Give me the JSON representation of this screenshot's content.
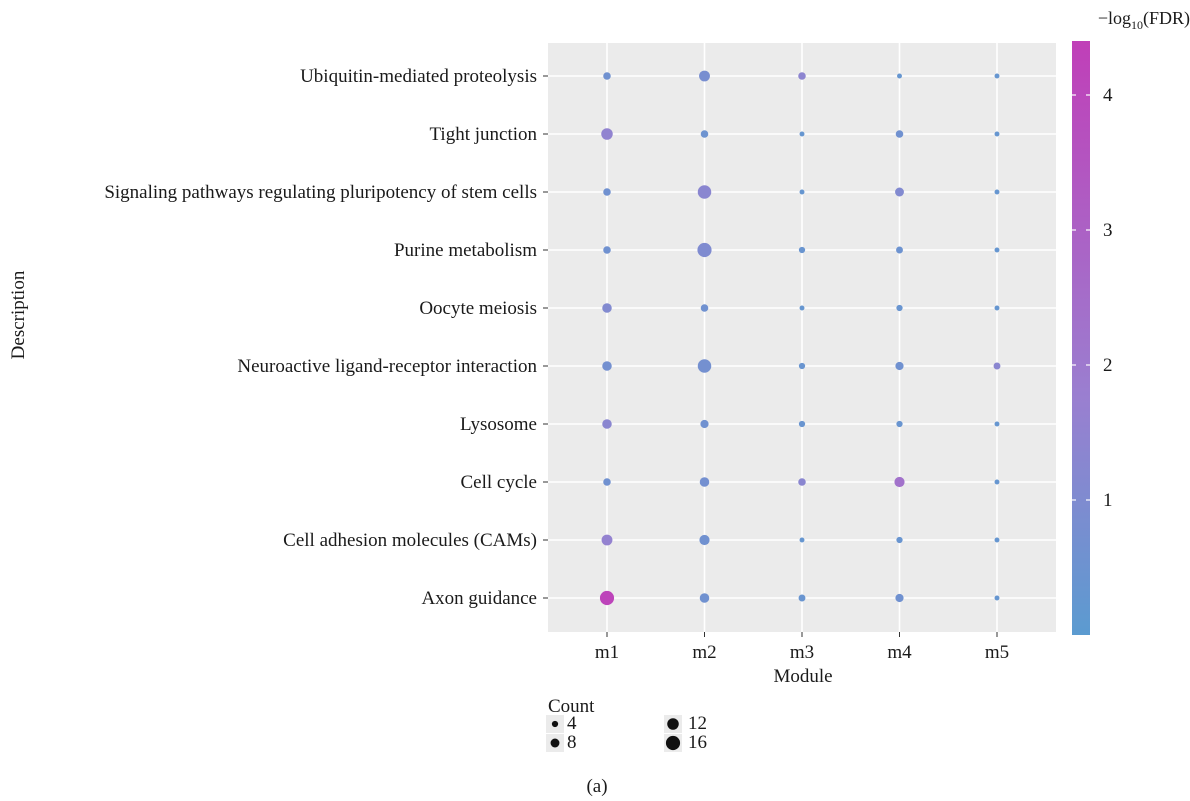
{
  "chart_data": {
    "type": "scatter",
    "subtype": "dot-plot",
    "xlabel": "Module",
    "ylabel": "Description",
    "caption": "(a)",
    "x_categories": [
      "m1",
      "m2",
      "m3",
      "m4",
      "m5"
    ],
    "y_categories": [
      "Ubiquitin-mediated proteolysis",
      "Tight junction",
      "Signaling pathways regulating pluripotency of stem cells",
      "Purine metabolism",
      "Oocyte meiosis",
      "Neuroactive ligand-receptor interaction",
      "Lysosome",
      "Cell cycle",
      "Cell adhesion molecules (CAMs)",
      "Axon guidance"
    ],
    "color_legend": {
      "title_prefix": "−log",
      "title_sub": "10",
      "title_suffix": "(FDR)",
      "ticks": [
        1,
        2,
        3,
        4
      ],
      "tick_labels": [
        "1",
        "2",
        "3",
        "4"
      ],
      "range": [
        0,
        4.4
      ],
      "low_color": "#5b9bd0",
      "mid_color": "#9a7fd0",
      "high_color": "#c03fb8"
    },
    "size_legend": {
      "title": "Count",
      "values": [
        4,
        8,
        12,
        16
      ],
      "labels": [
        "4",
        "8",
        "12",
        "16"
      ]
    },
    "grid": true,
    "panel_background": "#ebebeb",
    "points": [
      {
        "x": "m1",
        "y": "Ubiquitin-mediated proteolysis",
        "count": 6,
        "value": 0.6
      },
      {
        "x": "m2",
        "y": "Ubiquitin-mediated proteolysis",
        "count": 11,
        "value": 0.8
      },
      {
        "x": "m3",
        "y": "Ubiquitin-mediated proteolysis",
        "count": 6,
        "value": 1.4
      },
      {
        "x": "m4",
        "y": "Ubiquitin-mediated proteolysis",
        "count": 2,
        "value": 0.3
      },
      {
        "x": "m5",
        "y": "Ubiquitin-mediated proteolysis",
        "count": 2,
        "value": 0.3
      },
      {
        "x": "m1",
        "y": "Tight junction",
        "count": 12,
        "value": 1.5
      },
      {
        "x": "m2",
        "y": "Tight junction",
        "count": 6,
        "value": 0.5
      },
      {
        "x": "m3",
        "y": "Tight junction",
        "count": 2,
        "value": 0.3
      },
      {
        "x": "m4",
        "y": "Tight junction",
        "count": 6,
        "value": 0.6
      },
      {
        "x": "m5",
        "y": "Tight junction",
        "count": 2,
        "value": 0.3
      },
      {
        "x": "m1",
        "y": "Signaling pathways regulating pluripotency of stem cells",
        "count": 6,
        "value": 0.6
      },
      {
        "x": "m2",
        "y": "Signaling pathways regulating pluripotency of stem cells",
        "count": 15,
        "value": 1.3
      },
      {
        "x": "m3",
        "y": "Signaling pathways regulating pluripotency of stem cells",
        "count": 2,
        "value": 0.3
      },
      {
        "x": "m4",
        "y": "Signaling pathways regulating pluripotency of stem cells",
        "count": 8,
        "value": 1.1
      },
      {
        "x": "m5",
        "y": "Signaling pathways regulating pluripotency of stem cells",
        "count": 2,
        "value": 0.3
      },
      {
        "x": "m1",
        "y": "Purine metabolism",
        "count": 6,
        "value": 0.6
      },
      {
        "x": "m2",
        "y": "Purine metabolism",
        "count": 16,
        "value": 1.0
      },
      {
        "x": "m3",
        "y": "Purine metabolism",
        "count": 4,
        "value": 0.4
      },
      {
        "x": "m4",
        "y": "Purine metabolism",
        "count": 5,
        "value": 0.5
      },
      {
        "x": "m5",
        "y": "Purine metabolism",
        "count": 2,
        "value": 0.3
      },
      {
        "x": "m1",
        "y": "Oocyte meiosis",
        "count": 9,
        "value": 1.1
      },
      {
        "x": "m2",
        "y": "Oocyte meiosis",
        "count": 6,
        "value": 0.6
      },
      {
        "x": "m3",
        "y": "Oocyte meiosis",
        "count": 2,
        "value": 0.3
      },
      {
        "x": "m4",
        "y": "Oocyte meiosis",
        "count": 4,
        "value": 0.4
      },
      {
        "x": "m5",
        "y": "Oocyte meiosis",
        "count": 2,
        "value": 0.3
      },
      {
        "x": "m1",
        "y": "Neuroactive ligand-receptor interaction",
        "count": 9,
        "value": 0.7
      },
      {
        "x": "m2",
        "y": "Neuroactive ligand-receptor interaction",
        "count": 15,
        "value": 0.7
      },
      {
        "x": "m3",
        "y": "Neuroactive ligand-receptor interaction",
        "count": 4,
        "value": 0.4
      },
      {
        "x": "m4",
        "y": "Neuroactive ligand-receptor interaction",
        "count": 7,
        "value": 0.6
      },
      {
        "x": "m5",
        "y": "Neuroactive ligand-receptor interaction",
        "count": 5,
        "value": 1.3
      },
      {
        "x": "m1",
        "y": "Lysosome",
        "count": 9,
        "value": 1.3
      },
      {
        "x": "m2",
        "y": "Lysosome",
        "count": 7,
        "value": 0.6
      },
      {
        "x": "m3",
        "y": "Lysosome",
        "count": 4,
        "value": 0.4
      },
      {
        "x": "m4",
        "y": "Lysosome",
        "count": 4,
        "value": 0.4
      },
      {
        "x": "m5",
        "y": "Lysosome",
        "count": 2,
        "value": 0.3
      },
      {
        "x": "m1",
        "y": "Cell cycle",
        "count": 6,
        "value": 0.6
      },
      {
        "x": "m2",
        "y": "Cell cycle",
        "count": 9,
        "value": 0.7
      },
      {
        "x": "m3",
        "y": "Cell cycle",
        "count": 6,
        "value": 1.3
      },
      {
        "x": "m4",
        "y": "Cell cycle",
        "count": 10,
        "value": 2.3
      },
      {
        "x": "m5",
        "y": "Cell cycle",
        "count": 2,
        "value": 0.3
      },
      {
        "x": "m1",
        "y": "Cell adhesion molecules (CAMs)",
        "count": 11,
        "value": 1.6
      },
      {
        "x": "m2",
        "y": "Cell adhesion molecules (CAMs)",
        "count": 10,
        "value": 0.6
      },
      {
        "x": "m3",
        "y": "Cell adhesion molecules (CAMs)",
        "count": 2,
        "value": 0.3
      },
      {
        "x": "m4",
        "y": "Cell adhesion molecules (CAMs)",
        "count": 4,
        "value": 0.4
      },
      {
        "x": "m5",
        "y": "Cell adhesion molecules (CAMs)",
        "count": 2,
        "value": 0.3
      },
      {
        "x": "m1",
        "y": "Axon guidance",
        "count": 16,
        "value": 4.2
      },
      {
        "x": "m2",
        "y": "Axon guidance",
        "count": 9,
        "value": 0.6
      },
      {
        "x": "m3",
        "y": "Axon guidance",
        "count": 5,
        "value": 0.4
      },
      {
        "x": "m4",
        "y": "Axon guidance",
        "count": 7,
        "value": 0.6
      },
      {
        "x": "m5",
        "y": "Axon guidance",
        "count": 2,
        "value": 0.3
      }
    ]
  }
}
